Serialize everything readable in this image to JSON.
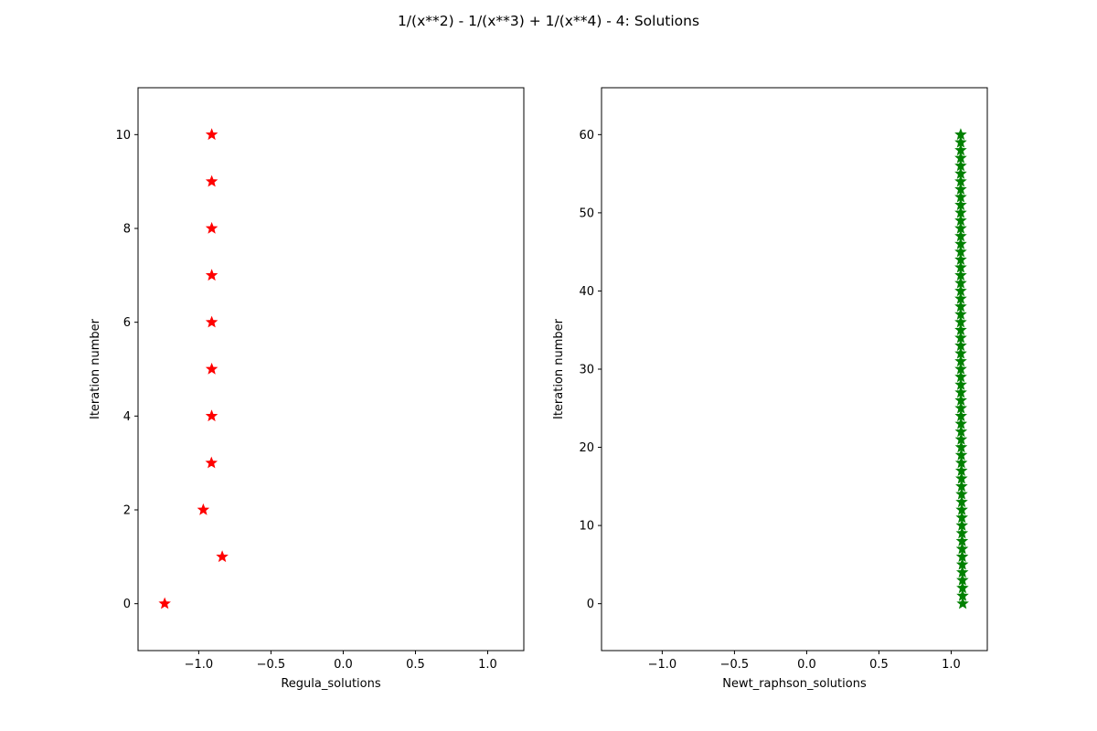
{
  "figure": {
    "suptitle": "1/(x**2) - 1/(x**3) + 1/(x**4) - 4: Solutions"
  },
  "chart_data": [
    {
      "type": "scatter",
      "title": "",
      "xlabel": "Regula_solutions",
      "ylabel": "Iteration number",
      "xlim": [
        -1.42,
        1.25
      ],
      "ylim": [
        -1,
        11
      ],
      "xticks": [
        -1.0,
        -0.5,
        0.0,
        0.5,
        1.0
      ],
      "xtick_labels": [
        "−1.0",
        "−0.5",
        "0.0",
        "0.5",
        "1.0"
      ],
      "yticks": [
        0,
        2,
        4,
        6,
        8,
        10
      ],
      "ytick_labels": [
        "0",
        "2",
        "4",
        "6",
        "8",
        "10"
      ],
      "marker": "star",
      "color": "#ff0000",
      "grid": false,
      "points": [
        {
          "x": -1.2355,
          "y": 0
        },
        {
          "x": -0.8374,
          "y": 1
        },
        {
          "x": -0.9684,
          "y": 2
        },
        {
          "x": -0.9121,
          "y": 3
        },
        {
          "x": -0.9105,
          "y": 4
        },
        {
          "x": -0.91,
          "y": 5
        },
        {
          "x": -0.91,
          "y": 6
        },
        {
          "x": -0.91,
          "y": 7
        },
        {
          "x": -0.91,
          "y": 8
        },
        {
          "x": -0.91,
          "y": 9
        },
        {
          "x": -0.91,
          "y": 10
        }
      ]
    },
    {
      "type": "scatter",
      "title": "",
      "xlabel": "Newt_raphson_solutions",
      "ylabel": "Iteration number",
      "xlim": [
        -1.42,
        1.25
      ],
      "ylim": [
        -6,
        66
      ],
      "xticks": [
        -1.0,
        -0.5,
        0.0,
        0.5,
        1.0
      ],
      "xtick_labels": [
        "−1.0",
        "−0.5",
        "0.0",
        "0.5",
        "1.0"
      ],
      "yticks": [
        0,
        10,
        20,
        30,
        40,
        50,
        60
      ],
      "ytick_labels": [
        "0",
        "10",
        "20",
        "30",
        "40",
        "50",
        "60"
      ],
      "marker": "star",
      "color": "#008000",
      "grid": false,
      "points": [
        {
          "x": 1.08,
          "y": 0
        },
        {
          "x": 1.079,
          "y": 1
        },
        {
          "x": 1.0785,
          "y": 2
        },
        {
          "x": 1.078,
          "y": 3
        },
        {
          "x": 1.0775,
          "y": 4
        },
        {
          "x": 1.077,
          "y": 5
        },
        {
          "x": 1.0765,
          "y": 6
        },
        {
          "x": 1.076,
          "y": 7
        },
        {
          "x": 1.0755,
          "y": 8
        },
        {
          "x": 1.075,
          "y": 9
        },
        {
          "x": 1.0745,
          "y": 10
        },
        {
          "x": 1.074,
          "y": 11
        },
        {
          "x": 1.0735,
          "y": 12
        },
        {
          "x": 1.073,
          "y": 13
        },
        {
          "x": 1.0725,
          "y": 14
        },
        {
          "x": 1.072,
          "y": 15
        },
        {
          "x": 1.0715,
          "y": 16
        },
        {
          "x": 1.071,
          "y": 17
        },
        {
          "x": 1.0705,
          "y": 18
        },
        {
          "x": 1.07,
          "y": 19
        },
        {
          "x": 1.0695,
          "y": 20
        },
        {
          "x": 1.069,
          "y": 21
        },
        {
          "x": 1.0685,
          "y": 22
        },
        {
          "x": 1.068,
          "y": 23
        },
        {
          "x": 1.0678,
          "y": 24
        },
        {
          "x": 1.0676,
          "y": 25
        },
        {
          "x": 1.0674,
          "y": 26
        },
        {
          "x": 1.0672,
          "y": 27
        },
        {
          "x": 1.067,
          "y": 28
        },
        {
          "x": 1.0668,
          "y": 29
        },
        {
          "x": 1.0666,
          "y": 30
        },
        {
          "x": 1.0665,
          "y": 31
        },
        {
          "x": 1.0664,
          "y": 32
        },
        {
          "x": 1.0663,
          "y": 33
        },
        {
          "x": 1.0662,
          "y": 34
        },
        {
          "x": 1.0661,
          "y": 35
        },
        {
          "x": 1.066,
          "y": 36
        },
        {
          "x": 1.066,
          "y": 37
        },
        {
          "x": 1.066,
          "y": 38
        },
        {
          "x": 1.066,
          "y": 39
        },
        {
          "x": 1.066,
          "y": 40
        },
        {
          "x": 1.066,
          "y": 41
        },
        {
          "x": 1.066,
          "y": 42
        },
        {
          "x": 1.066,
          "y": 43
        },
        {
          "x": 1.066,
          "y": 44
        },
        {
          "x": 1.066,
          "y": 45
        },
        {
          "x": 1.066,
          "y": 46
        },
        {
          "x": 1.066,
          "y": 47
        },
        {
          "x": 1.066,
          "y": 48
        },
        {
          "x": 1.066,
          "y": 49
        },
        {
          "x": 1.066,
          "y": 50
        },
        {
          "x": 1.066,
          "y": 51
        },
        {
          "x": 1.066,
          "y": 52
        },
        {
          "x": 1.066,
          "y": 53
        },
        {
          "x": 1.066,
          "y": 54
        },
        {
          "x": 1.066,
          "y": 55
        },
        {
          "x": 1.066,
          "y": 56
        },
        {
          "x": 1.066,
          "y": 57
        },
        {
          "x": 1.066,
          "y": 58
        },
        {
          "x": 1.066,
          "y": 59
        },
        {
          "x": 1.066,
          "y": 60
        }
      ]
    }
  ]
}
